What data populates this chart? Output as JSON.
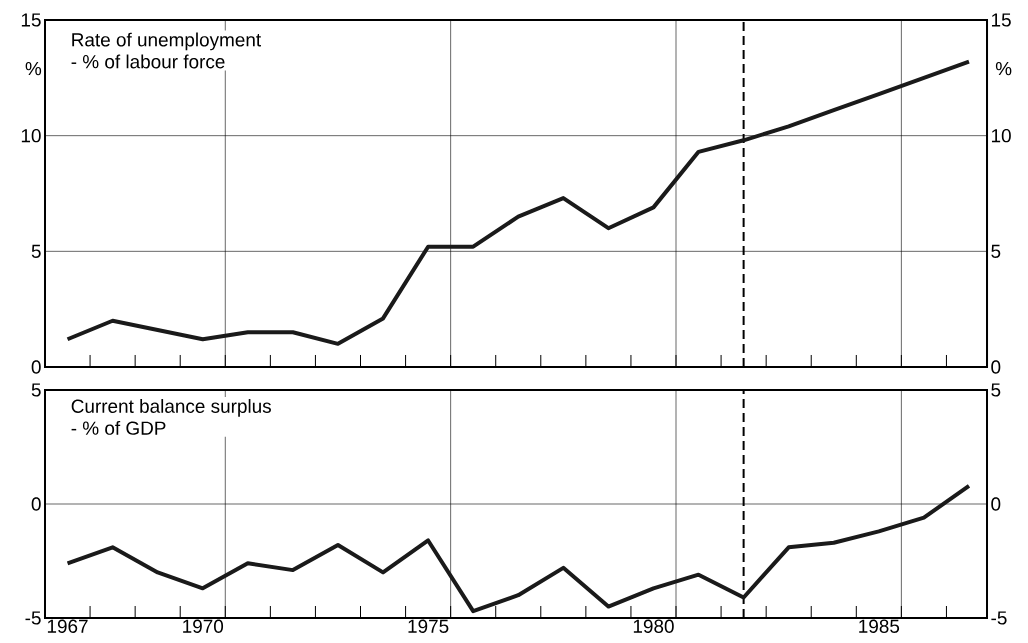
{
  "chart_data": [
    {
      "type": "line",
      "title": "Rate of unemployment",
      "subtitle": "- % of labour force",
      "ylabel": "%",
      "y2label": "%",
      "x": [
        1967,
        1968,
        1969,
        1970,
        1971,
        1972,
        1973,
        1974,
        1975,
        1976,
        1977,
        1978,
        1979,
        1980,
        1981,
        1982,
        1983,
        1984,
        1985,
        1986,
        1987
      ],
      "series": [
        {
          "color": "#1a1a1a",
          "values": [
            1.2,
            2.0,
            1.6,
            1.2,
            1.5,
            1.5,
            1.0,
            2.1,
            5.2,
            5.2,
            6.5,
            7.3,
            6.0,
            6.9,
            9.3,
            9.8,
            10.4,
            11.1,
            11.8,
            12.5,
            13.2
          ]
        }
      ],
      "xlim": [
        1966.5,
        1987.4
      ],
      "xticks": [
        {
          "value": 1967.5,
          "label": null
        },
        {
          "value": 1968.5,
          "label": null
        },
        {
          "value": 1969.5,
          "label": null
        },
        {
          "value": 1970.5,
          "label": null
        },
        {
          "value": 1971.5,
          "label": null
        },
        {
          "value": 1972.5,
          "label": null
        },
        {
          "value": 1973.5,
          "label": null
        },
        {
          "value": 1974.5,
          "label": null
        },
        {
          "value": 1975.5,
          "label": null
        },
        {
          "value": 1976.5,
          "label": null
        },
        {
          "value": 1977.5,
          "label": null
        },
        {
          "value": 1978.5,
          "label": null
        },
        {
          "value": 1979.5,
          "label": null
        },
        {
          "value": 1980.5,
          "label": null
        },
        {
          "value": 1981.5,
          "label": null
        },
        {
          "value": 1982.5,
          "label": null
        },
        {
          "value": 1983.5,
          "label": null
        },
        {
          "value": 1984.5,
          "label": null
        },
        {
          "value": 1985.5,
          "label": null
        },
        {
          "value": 1986.5,
          "label": null
        }
      ],
      "ylim": [
        0,
        15
      ],
      "yticks": [
        0,
        5,
        10,
        15
      ],
      "y2lim": [
        0,
        15
      ],
      "y2ticks": [
        0,
        5,
        10,
        15
      ],
      "grid": "y",
      "tick_labels": "y",
      "ref_lines": [
        {
          "axis": "x",
          "value": 1970.5,
          "color": "#000000",
          "line_style": "solid"
        },
        {
          "axis": "x",
          "value": 1975.5,
          "color": "#000000",
          "line_style": "solid"
        },
        {
          "axis": "x",
          "value": 1980.5,
          "color": "#000000",
          "line_style": "solid"
        },
        {
          "axis": "x",
          "value": 1985.5,
          "color": "#000000",
          "line_style": "solid"
        },
        {
          "axis": "x",
          "value": 1982,
          "color": "#000000",
          "line_style": "dashed"
        }
      ]
    },
    {
      "type": "line",
      "title": "Current balance surplus",
      "subtitle": "- % of GDP",
      "x": [
        1967,
        1968,
        1969,
        1970,
        1971,
        1972,
        1973,
        1974,
        1975,
        1976,
        1977,
        1978,
        1979,
        1980,
        1981,
        1982,
        1983,
        1984,
        1985,
        1986,
        1987
      ],
      "series": [
        {
          "color": "#1a1a1a",
          "values": [
            -2.6,
            -1.9,
            -3.0,
            -3.7,
            -2.6,
            -2.9,
            -1.8,
            -3.0,
            -1.6,
            -4.7,
            -4.0,
            -2.8,
            -4.5,
            -3.7,
            -3.1,
            -4.1,
            -1.9,
            -1.7,
            -1.2,
            -0.6,
            0.8
          ]
        }
      ],
      "xlim": [
        1966.5,
        1987.4
      ],
      "xticks": [
        {
          "value": 1967,
          "label": "1967"
        },
        {
          "value": 1970,
          "label": "1970"
        },
        {
          "value": 1975,
          "label": "1975"
        },
        {
          "value": 1980,
          "label": "1980"
        },
        {
          "value": 1985,
          "label": "1985"
        },
        {
          "value": 1967.5,
          "label": null
        },
        {
          "value": 1968.5,
          "label": null
        },
        {
          "value": 1969.5,
          "label": null
        },
        {
          "value": 1970.5,
          "label": null
        },
        {
          "value": 1971.5,
          "label": null
        },
        {
          "value": 1972.5,
          "label": null
        },
        {
          "value": 1973.5,
          "label": null
        },
        {
          "value": 1974.5,
          "label": null
        },
        {
          "value": 1975.5,
          "label": null
        },
        {
          "value": 1976.5,
          "label": null
        },
        {
          "value": 1977.5,
          "label": null
        },
        {
          "value": 1978.5,
          "label": null
        },
        {
          "value": 1979.5,
          "label": null
        },
        {
          "value": 1980.5,
          "label": null
        },
        {
          "value": 1981.5,
          "label": null
        },
        {
          "value": 1982.5,
          "label": null
        },
        {
          "value": 1983.5,
          "label": null
        },
        {
          "value": 1984.5,
          "label": null
        },
        {
          "value": 1985.5,
          "label": null
        },
        {
          "value": 1986.5,
          "label": null
        }
      ],
      "ylim": [
        -5,
        5
      ],
      "yticks": [
        -5,
        0,
        5
      ],
      "y2lim": [
        -5,
        5
      ],
      "y2ticks": [
        -5,
        0,
        5
      ],
      "grid": "y",
      "ref_lines": [
        {
          "axis": "x",
          "value": 1970.5,
          "color": "#000000",
          "line_style": "solid"
        },
        {
          "axis": "x",
          "value": 1975.5,
          "color": "#000000",
          "line_style": "solid"
        },
        {
          "axis": "x",
          "value": 1980.5,
          "color": "#000000",
          "line_style": "solid"
        },
        {
          "axis": "x",
          "value": 1985.5,
          "color": "#000000",
          "line_style": "solid"
        },
        {
          "axis": "x",
          "value": 1982,
          "color": "#000000",
          "line_style": "dashed"
        }
      ]
    }
  ]
}
